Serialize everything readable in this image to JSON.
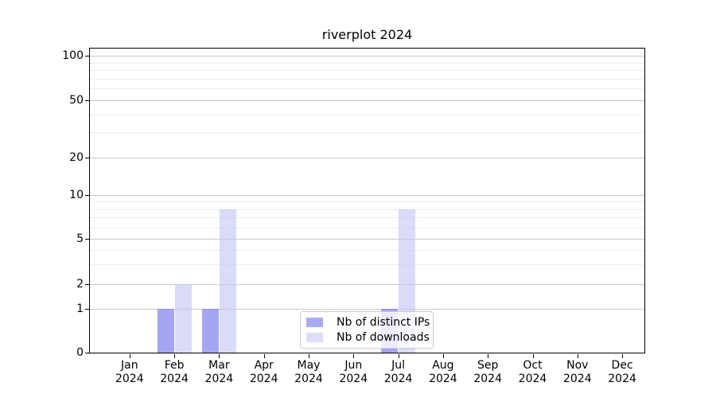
{
  "chart_data": {
    "type": "bar",
    "title": "riverplot 2024",
    "x": [
      {
        "month": "Jan",
        "year": "2024"
      },
      {
        "month": "Feb",
        "year": "2024"
      },
      {
        "month": "Mar",
        "year": "2024"
      },
      {
        "month": "Apr",
        "year": "2024"
      },
      {
        "month": "May",
        "year": "2024"
      },
      {
        "month": "Jun",
        "year": "2024"
      },
      {
        "month": "Jul",
        "year": "2024"
      },
      {
        "month": "Aug",
        "year": "2024"
      },
      {
        "month": "Sep",
        "year": "2024"
      },
      {
        "month": "Oct",
        "year": "2024"
      },
      {
        "month": "Nov",
        "year": "2024"
      },
      {
        "month": "Dec",
        "year": "2024"
      }
    ],
    "series": [
      {
        "name": "Nb of distinct IPs",
        "key": "distinct-ips",
        "swatch": "#a9abf3",
        "fill": "rgba(110,110,235,0.62)",
        "values": [
          0,
          1,
          1,
          0,
          0,
          0,
          1,
          0,
          0,
          0,
          0,
          0
        ]
      },
      {
        "name": "Nb of downloads",
        "key": "downloads",
        "swatch": "#dcddf8",
        "fill": "rgba(196,197,243,0.62)",
        "values": [
          0,
          2,
          8,
          0,
          0,
          0,
          8,
          0,
          0,
          0,
          0,
          0
        ]
      }
    ],
    "y_ticks": {
      "major": [
        0,
        1,
        2,
        5,
        10,
        20,
        50,
        100
      ],
      "minor": [
        3,
        4,
        6,
        7,
        8,
        9,
        30,
        40,
        60,
        70,
        80,
        90
      ]
    },
    "ylim": [
      0,
      112
    ],
    "yscale": "linear below 1, logarithmic above 1",
    "grid": true,
    "legend_position": "lower center"
  },
  "colors": {
    "grid_major": "#c9c9c9",
    "grid_minor": "#ececec",
    "axis": "#000000",
    "background": "#ffffff"
  }
}
